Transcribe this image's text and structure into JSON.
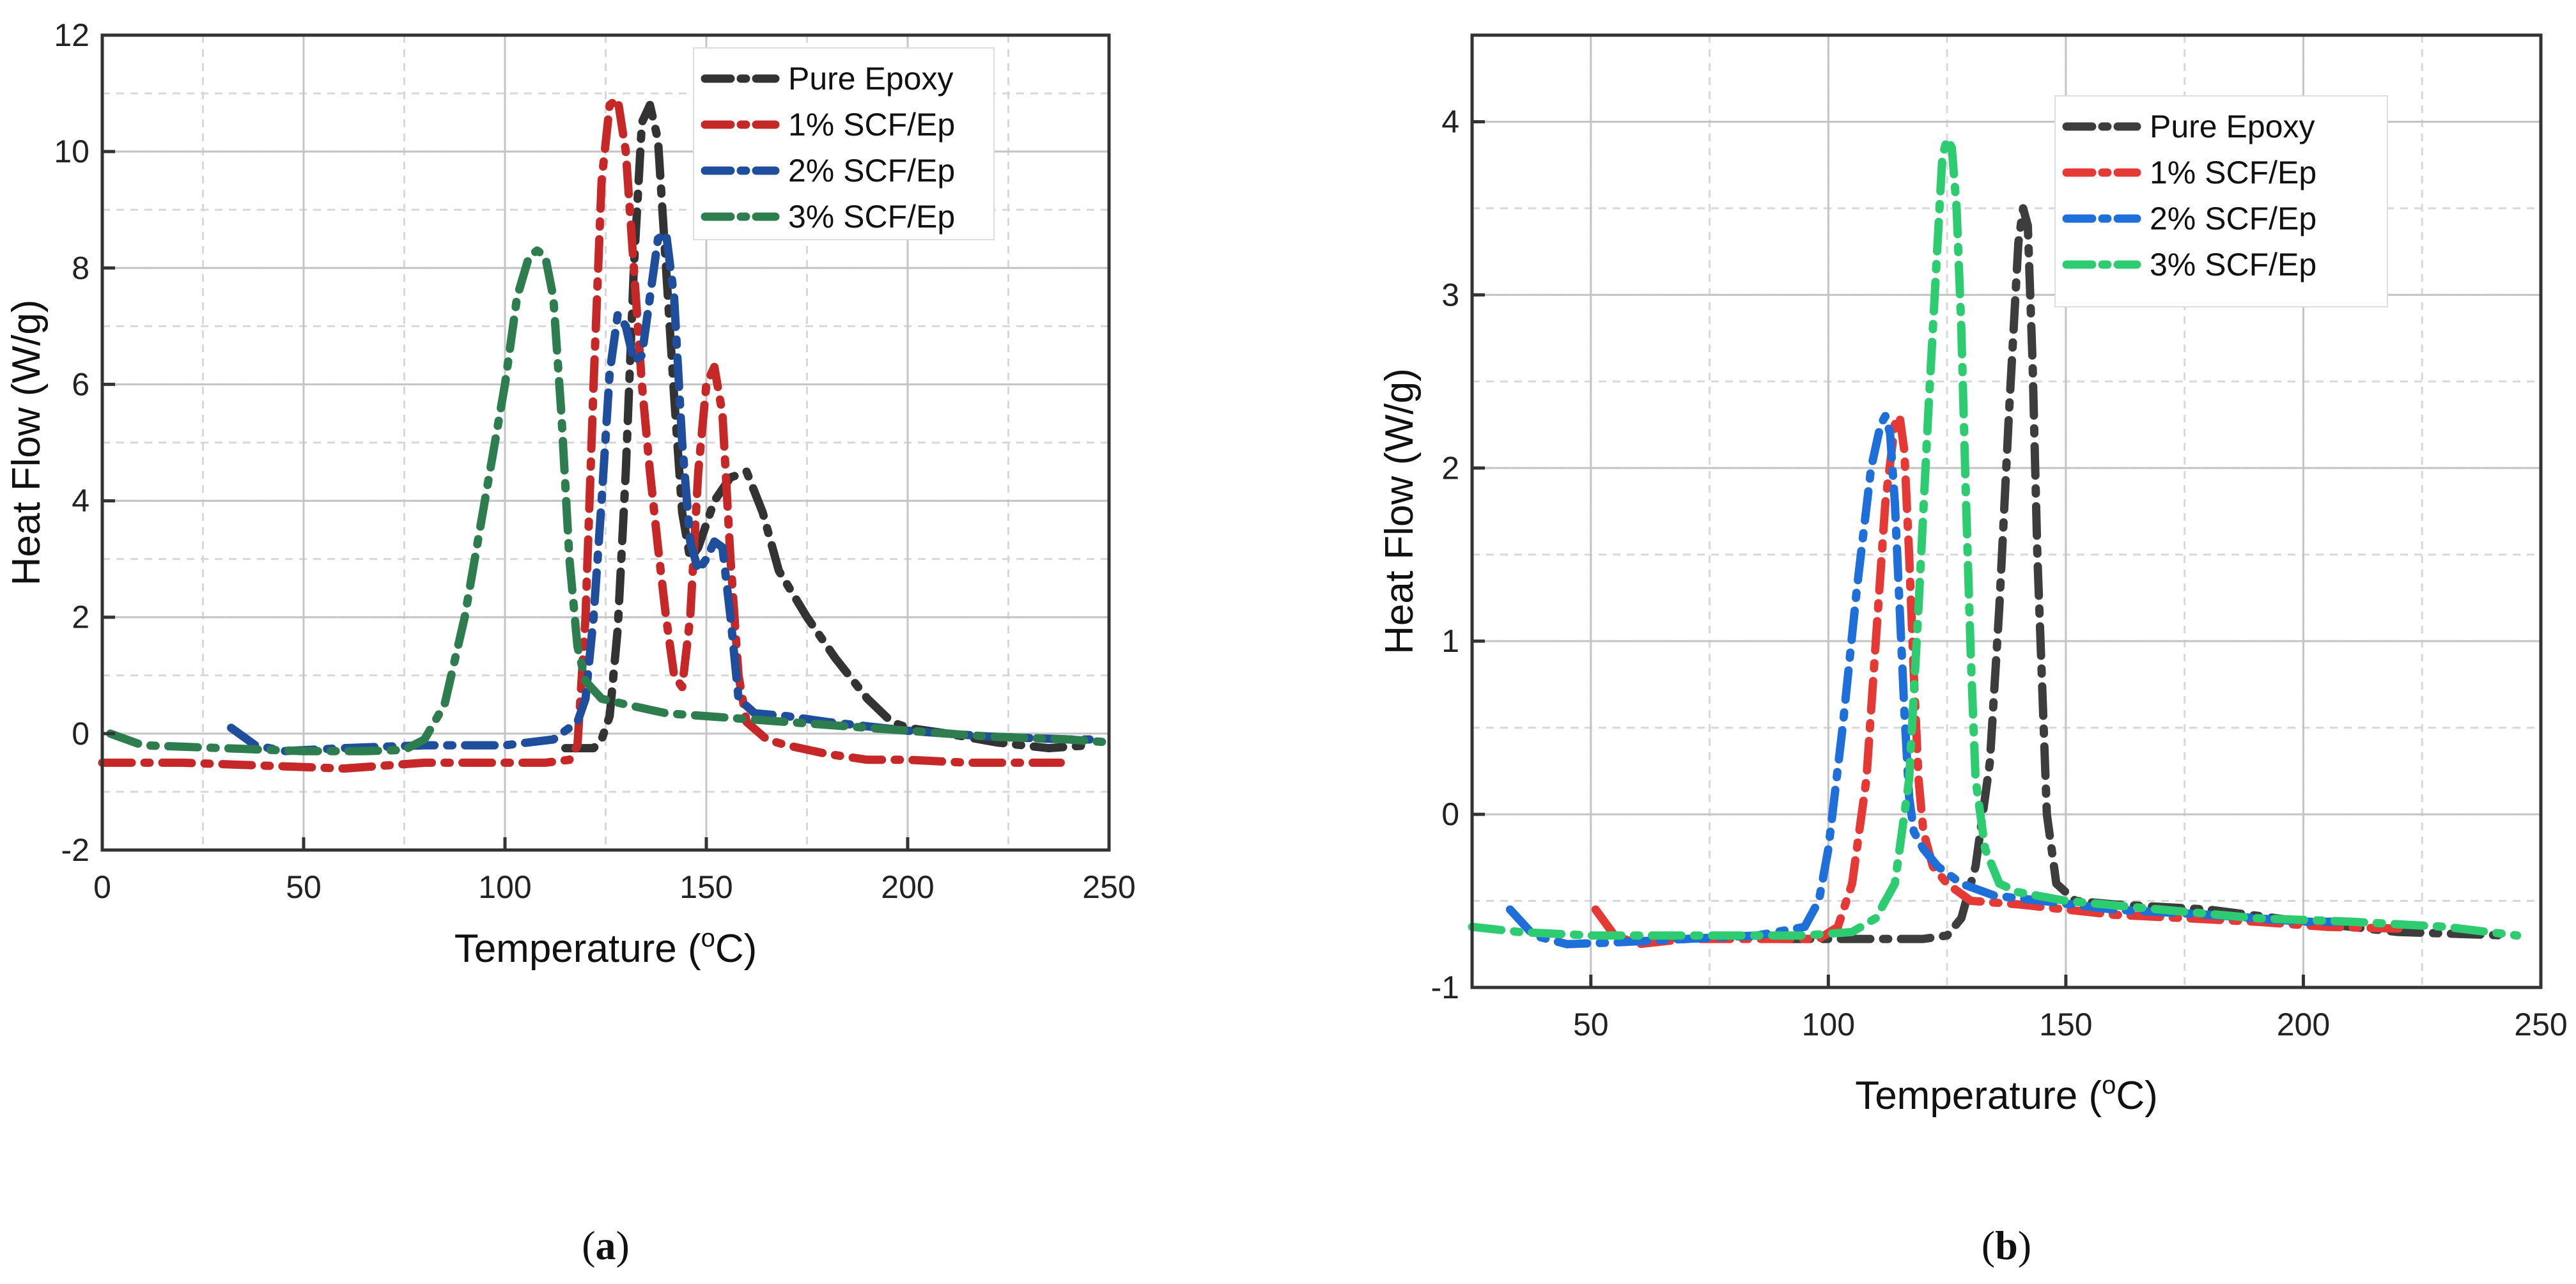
{
  "chart_data": [
    {
      "type": "line",
      "panel_label": "a",
      "xlabel": "Temperature (°C)",
      "xlabel_prefix": "Temperature (",
      "xlabel_sup": "o",
      "xlabel_suffix": "C)",
      "ylabel": "Heat Flow (W/g)",
      "xlim": [
        0,
        250
      ],
      "ylim": [
        -2,
        12
      ],
      "xticks": [
        0,
        50,
        100,
        150,
        200,
        250
      ],
      "yticks": [
        -2,
        0,
        2,
        4,
        6,
        8,
        10,
        12
      ],
      "grid": true,
      "legend_position": "top-right",
      "series": [
        {
          "name": "Pure Epoxy",
          "color": "#333333",
          "x": [
            115,
            122,
            124,
            126,
            128,
            130,
            132,
            134,
            136,
            138,
            140,
            142,
            144,
            146,
            148,
            150,
            152,
            156,
            160,
            164,
            168,
            175,
            182,
            190,
            196,
            200,
            210,
            222,
            235,
            245
          ],
          "y": [
            -0.25,
            -0.25,
            -0.1,
            0.3,
            1.8,
            4.5,
            8.0,
            10.5,
            10.8,
            10.2,
            8.0,
            5.8,
            3.8,
            3.0,
            3.2,
            3.6,
            4.0,
            4.4,
            4.5,
            3.8,
            2.8,
            2.0,
            1.3,
            0.6,
            0.2,
            0.1,
            0.0,
            -0.15,
            -0.25,
            -0.2
          ]
        },
        {
          "name": "1% SCF/Ep",
          "color": "#c62828",
          "x": [
            0,
            20,
            40,
            60,
            80,
            100,
            110,
            116,
            118,
            120,
            122,
            124,
            126,
            128,
            130,
            132,
            134,
            136,
            138,
            140,
            142,
            144,
            146,
            148,
            150,
            152,
            154,
            156,
            158,
            160,
            165,
            170,
            180,
            190,
            200,
            215,
            230,
            238
          ],
          "y": [
            -0.5,
            -0.5,
            -0.55,
            -0.6,
            -0.5,
            -0.5,
            -0.5,
            -0.45,
            -0.2,
            2.0,
            6.0,
            9.5,
            10.8,
            10.9,
            10.0,
            8.0,
            6.0,
            4.5,
            3.2,
            2.0,
            1.0,
            0.8,
            2.0,
            4.5,
            6.0,
            6.3,
            5.5,
            3.0,
            1.0,
            0.2,
            -0.1,
            -0.2,
            -0.35,
            -0.45,
            -0.45,
            -0.5,
            -0.5,
            -0.5
          ]
        },
        {
          "name": "2% SCF/Ep",
          "color": "#1f4e9c",
          "x": [
            32,
            38,
            45,
            60,
            80,
            100,
            112,
            118,
            120,
            122,
            124,
            126,
            128,
            130,
            132,
            134,
            136,
            138,
            140,
            142,
            144,
            146,
            148,
            150,
            152,
            154,
            156,
            158,
            162,
            170,
            180,
            200,
            220,
            240,
            248
          ],
          "y": [
            0.1,
            -0.2,
            -0.3,
            -0.25,
            -0.2,
            -0.2,
            -0.1,
            0.2,
            0.6,
            2.0,
            4.0,
            6.2,
            7.2,
            7.0,
            6.4,
            6.5,
            7.5,
            8.5,
            8.6,
            7.5,
            5.0,
            3.3,
            2.8,
            3.0,
            3.3,
            3.2,
            2.0,
            0.6,
            0.35,
            0.3,
            0.2,
            0.05,
            -0.05,
            -0.1,
            -0.1
          ]
        },
        {
          "name": "3% SCF/Ep",
          "color": "#2e7d4f",
          "x": [
            2,
            10,
            30,
            50,
            65,
            75,
            80,
            85,
            90,
            95,
            100,
            103,
            106,
            108,
            110,
            112,
            114,
            116,
            118,
            120,
            124,
            130,
            140,
            150,
            160,
            180,
            200,
            220,
            240,
            250
          ],
          "y": [
            0.0,
            -0.2,
            -0.25,
            -0.3,
            -0.3,
            -0.28,
            -0.1,
            0.5,
            2.0,
            4.0,
            6.0,
            7.5,
            8.2,
            8.3,
            8.2,
            7.5,
            5.5,
            3.0,
            1.5,
            0.9,
            0.6,
            0.5,
            0.35,
            0.3,
            0.25,
            0.15,
            0.05,
            -0.05,
            -0.1,
            -0.15
          ]
        }
      ]
    },
    {
      "type": "line",
      "panel_label": "b",
      "xlabel": "Temperature (°C)",
      "xlabel_prefix": "Temperature (",
      "xlabel_sup": "o",
      "xlabel_suffix": "C)",
      "ylabel": "Heat Flow (W/g)",
      "xlim": [
        25,
        250
      ],
      "ylim": [
        -1,
        4.5
      ],
      "xticks": [
        50,
        100,
        150,
        200,
        250
      ],
      "yticks": [
        -1,
        0,
        1,
        2,
        3,
        4
      ],
      "grid": true,
      "legend_position": "top-right",
      "series": [
        {
          "name": "Pure Epoxy",
          "color": "#3d3d3d",
          "x": [
            90,
            110,
            120,
            125,
            128,
            131,
            134,
            136,
            138,
            140,
            141,
            142,
            143,
            144,
            146,
            148,
            152,
            160,
            180,
            200,
            220,
            243
          ],
          "y": [
            -0.72,
            -0.72,
            -0.72,
            -0.7,
            -0.6,
            -0.3,
            0.3,
            1.2,
            2.3,
            3.3,
            3.5,
            3.4,
            2.6,
            1.5,
            0.0,
            -0.4,
            -0.5,
            -0.52,
            -0.55,
            -0.62,
            -0.68,
            -0.7
          ]
        },
        {
          "name": "1% SCF/Ep",
          "color": "#e53935",
          "x": [
            51,
            55,
            60,
            70,
            80,
            90,
            98,
            102,
            105,
            108,
            110,
            112,
            114,
            115,
            116,
            117,
            118,
            119,
            120,
            122,
            125,
            130,
            140,
            150,
            160,
            175,
            190,
            205,
            220
          ],
          "y": [
            -0.55,
            -0.7,
            -0.75,
            -0.72,
            -0.72,
            -0.72,
            -0.72,
            -0.65,
            -0.4,
            0.2,
            1.0,
            1.8,
            2.25,
            2.3,
            2.1,
            1.5,
            0.8,
            0.2,
            -0.1,
            -0.3,
            -0.4,
            -0.5,
            -0.52,
            -0.55,
            -0.58,
            -0.6,
            -0.62,
            -0.65,
            -0.66
          ]
        },
        {
          "name": "2% SCF/Ep",
          "color": "#1e6fd9",
          "x": [
            33,
            38,
            45,
            55,
            70,
            85,
            95,
            98,
            100,
            103,
            106,
            109,
            111,
            112,
            113,
            114,
            115,
            116,
            117,
            118,
            120,
            123,
            128,
            135,
            145,
            160,
            180,
            200,
            210
          ],
          "y": [
            -0.55,
            -0.7,
            -0.75,
            -0.74,
            -0.72,
            -0.7,
            -0.65,
            -0.5,
            -0.2,
            0.5,
            1.3,
            2.0,
            2.25,
            2.3,
            2.2,
            1.8,
            1.2,
            0.6,
            0.1,
            -0.1,
            -0.2,
            -0.3,
            -0.4,
            -0.47,
            -0.5,
            -0.55,
            -0.58,
            -0.62,
            -0.62
          ]
        },
        {
          "name": "3% SCF/Ep",
          "color": "#2ecc71",
          "x": [
            25,
            35,
            50,
            65,
            80,
            95,
            105,
            110,
            114,
            117,
            119,
            121,
            123,
            124,
            125,
            126,
            127,
            128,
            129,
            130,
            131,
            133,
            136,
            140,
            150,
            170,
            190,
            210,
            230,
            245
          ],
          "y": [
            -0.65,
            -0.68,
            -0.7,
            -0.7,
            -0.7,
            -0.7,
            -0.68,
            -0.6,
            -0.4,
            0.2,
            1.2,
            2.3,
            3.3,
            3.8,
            3.9,
            3.85,
            3.5,
            2.8,
            1.8,
            0.9,
            0.2,
            -0.2,
            -0.4,
            -0.45,
            -0.5,
            -0.55,
            -0.6,
            -0.62,
            -0.65,
            -0.7
          ]
        }
      ]
    }
  ]
}
